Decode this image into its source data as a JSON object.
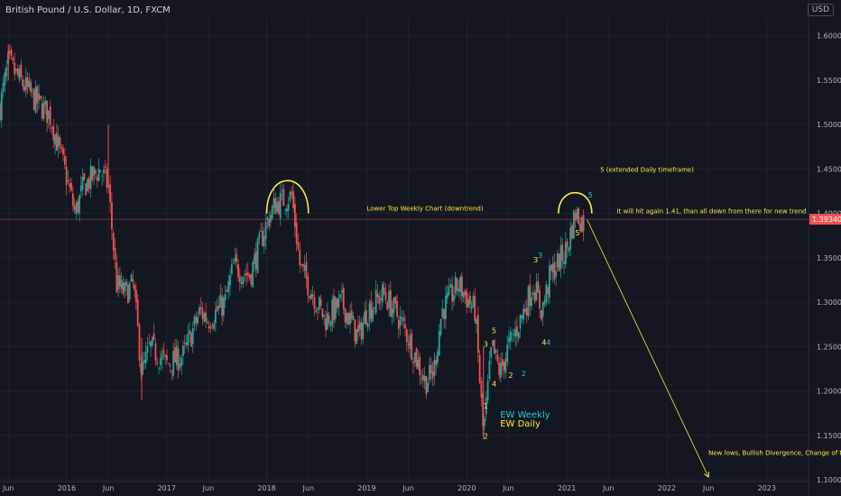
{
  "header": {
    "symbol_title": "British Pound / U.S. Dollar, 1D, FXCM",
    "currency_button": "USD"
  },
  "colors": {
    "background": "#131722",
    "grid": "#1e222d",
    "up": "#26a69a",
    "down": "#ef5350",
    "annotation": "#ffeb3b",
    "annotation_cyan": "#26c6da",
    "price_line": "#ef5350",
    "axis_text": "#b2b5be"
  },
  "chart_data": {
    "type": "candlestick",
    "title": "British Pound / U.S. Dollar, 1D, FXCM",
    "ylim": [
      1.1,
      1.62
    ],
    "x_range": [
      "2015-05",
      "2023-06"
    ],
    "y_ticks": [
      "1.60000",
      "1.55000",
      "1.50000",
      "1.45000",
      "1.40000",
      "1.35000",
      "1.30000",
      "1.25000",
      "1.20000",
      "1.15000",
      "1.10000"
    ],
    "x_ticks": [
      {
        "label": "Jun",
        "date": "2015-06"
      },
      {
        "label": "2016",
        "date": "2016-01"
      },
      {
        "label": "Jun",
        "date": "2016-06"
      },
      {
        "label": "2017",
        "date": "2017-01"
      },
      {
        "label": "Jun",
        "date": "2017-06"
      },
      {
        "label": "2018",
        "date": "2018-01"
      },
      {
        "label": "Jun",
        "date": "2018-06"
      },
      {
        "label": "2019",
        "date": "2019-01"
      },
      {
        "label": "Jun",
        "date": "2019-06"
      },
      {
        "label": "2020",
        "date": "2020-01"
      },
      {
        "label": "Jun",
        "date": "2020-06"
      },
      {
        "label": "2021",
        "date": "2021-01"
      },
      {
        "label": "Jun",
        "date": "2021-06"
      },
      {
        "label": "2022",
        "date": "2022-01"
      },
      {
        "label": "Jun",
        "date": "2022-06"
      },
      {
        "label": "2023",
        "date": "2023-01"
      }
    ],
    "last_price": {
      "value": 1.3934,
      "label": "1.39340"
    },
    "price_path": [
      [
        "2015-05",
        1.52
      ],
      [
        "2015-06",
        1.57
      ],
      [
        "2015-07",
        1.555
      ],
      [
        "2015-09",
        1.53
      ],
      [
        "2015-11",
        1.51
      ],
      [
        "2016-01",
        1.44
      ],
      [
        "2016-02",
        1.4
      ],
      [
        "2016-03",
        1.43
      ],
      [
        "2016-05",
        1.45
      ],
      [
        "2016-06",
        1.43
      ],
      [
        "2016-07",
        1.32
      ],
      [
        "2016-08",
        1.31
      ],
      [
        "2016-09",
        1.32
      ],
      [
        "2016-10",
        1.22
      ],
      [
        "2016-11",
        1.25
      ],
      [
        "2016-12",
        1.24
      ],
      [
        "2017-01",
        1.23
      ],
      [
        "2017-03",
        1.24
      ],
      [
        "2017-05",
        1.29
      ],
      [
        "2017-06",
        1.28
      ],
      [
        "2017-08",
        1.3
      ],
      [
        "2017-09",
        1.34
      ],
      [
        "2017-11",
        1.33
      ],
      [
        "2018-01",
        1.39
      ],
      [
        "2018-02",
        1.41
      ],
      [
        "2018-04",
        1.42
      ],
      [
        "2018-05",
        1.34
      ],
      [
        "2018-06",
        1.32
      ],
      [
        "2018-08",
        1.28
      ],
      [
        "2018-10",
        1.3
      ],
      [
        "2018-12",
        1.26
      ],
      [
        "2019-01",
        1.29
      ],
      [
        "2019-03",
        1.31
      ],
      [
        "2019-05",
        1.28
      ],
      [
        "2019-06",
        1.26
      ],
      [
        "2019-08",
        1.21
      ],
      [
        "2019-09",
        1.22
      ],
      [
        "2019-10",
        1.29
      ],
      [
        "2019-12",
        1.32
      ],
      [
        "2020-02",
        1.29
      ],
      [
        "2020-03",
        1.15
      ],
      [
        "2020-04",
        1.25
      ],
      [
        "2020-05",
        1.22
      ],
      [
        "2020-06",
        1.25
      ],
      [
        "2020-07",
        1.27
      ],
      [
        "2020-09",
        1.32
      ],
      [
        "2020-10",
        1.29
      ],
      [
        "2020-11",
        1.33
      ],
      [
        "2021-01",
        1.36
      ],
      [
        "2021-02",
        1.4
      ],
      [
        "2021-03",
        1.39
      ]
    ],
    "projection": {
      "from": [
        "2021-03",
        1.393
      ],
      "to": [
        "2022-06",
        1.103
      ]
    },
    "annotations": [
      {
        "text": "Lower Top Weekly Chart (downtrend)",
        "date": "2019-01",
        "price": 1.403,
        "color": "annotation"
      },
      {
        "text": "5 (extended Daily timeframe)",
        "date": "2021-05",
        "price": 1.447,
        "color": "annotation"
      },
      {
        "text": "It will hit again 1.41, than all down from there for new trend",
        "date": "2021-07",
        "price": 1.4,
        "color": "annotation"
      },
      {
        "text": "New lows, Bullish Divergence, Change of trend",
        "date": "2022-06",
        "price": 1.128,
        "color": "annotation"
      },
      {
        "text": "EW Weekly",
        "date": "2020-05",
        "price": 1.17,
        "color": "annotation_cyan",
        "size": 10
      },
      {
        "text": "EW Daily",
        "date": "2020-05",
        "price": 1.16,
        "color": "annotation",
        "size": 10
      }
    ],
    "wave_labels": [
      {
        "text": "1",
        "date": "2020-03",
        "price": 1.18,
        "color": "annotation"
      },
      {
        "text": "2",
        "date": "2020-03",
        "price": 1.146,
        "color": "annotation"
      },
      {
        "text": "3",
        "date": "2020-03",
        "price": 1.25,
        "color": "annotation"
      },
      {
        "text": "4",
        "date": "2020-04",
        "price": 1.205,
        "color": "annotation"
      },
      {
        "text": "5",
        "date": "2020-04",
        "price": 1.265,
        "color": "annotation"
      },
      {
        "text": "2",
        "date": "2020-06",
        "price": 1.215,
        "color": "annotation"
      },
      {
        "text": "2",
        "date": "2020-07",
        "price": 1.217,
        "color": "annotation_cyan"
      },
      {
        "text": "3",
        "date": "2020-09",
        "price": 1.345,
        "color": "annotation"
      },
      {
        "text": "3",
        "date": "2020-09",
        "price": 1.35,
        "color": "annotation_cyan"
      },
      {
        "text": "4",
        "date": "2020-10",
        "price": 1.252,
        "color": "annotation"
      },
      {
        "text": "4",
        "date": "2020-10",
        "price": 1.252,
        "color": "annotation_cyan"
      },
      {
        "text": "5",
        "date": "2021-02",
        "price": 1.375,
        "color": "annotation"
      },
      {
        "text": "5",
        "date": "2021-03",
        "price": 1.418,
        "color": "annotation_cyan"
      }
    ],
    "arcs": [
      {
        "from_date": "2018-01",
        "to_date": "2018-06",
        "price_bottom": 1.4,
        "price_top": 1.443
      },
      {
        "from_date": "2020-12",
        "to_date": "2021-04",
        "price_bottom": 1.4,
        "price_top": 1.425
      }
    ]
  }
}
